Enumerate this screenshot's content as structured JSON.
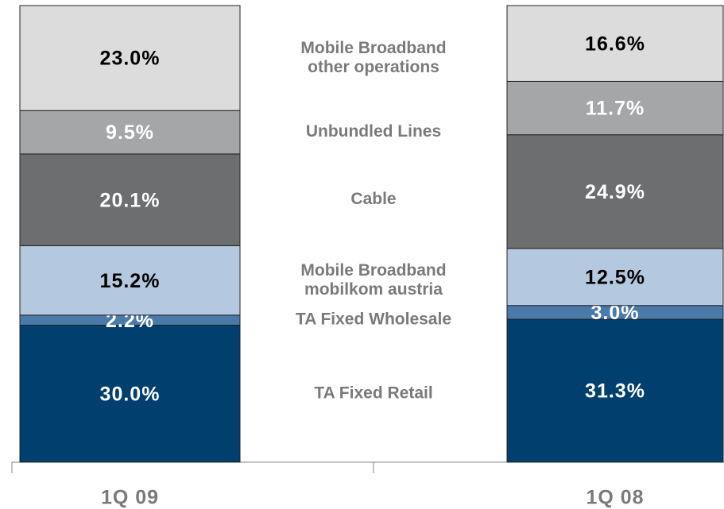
{
  "chart_data": {
    "type": "stacked_bar",
    "categories": [
      "1Q 09",
      "1Q 08"
    ],
    "ylim": [
      0,
      100
    ],
    "series": [
      {
        "name": "TA Fixed Retail",
        "color": "#003f6e",
        "values": [
          30.0,
          31.3
        ],
        "value_labels": [
          "30.0%",
          "31.3%"
        ]
      },
      {
        "name": "TA Fixed Wholesale",
        "color": "#4a7aaa",
        "values": [
          2.2,
          3.0
        ],
        "value_labels": [
          "2.2%",
          "3.0%"
        ]
      },
      {
        "name": "Mobile Broadband\nmobilkom austria",
        "color": "#b4c8e0",
        "values": [
          15.2,
          12.5
        ],
        "value_labels": [
          "15.2%",
          "12.5%"
        ]
      },
      {
        "name": "Cable",
        "color": "#6d6e70",
        "values": [
          20.1,
          24.9
        ],
        "value_labels": [
          "20.1%",
          "24.9%"
        ]
      },
      {
        "name": "Unbundled Lines",
        "color": "#a5a6a8",
        "values": [
          9.5,
          11.7
        ],
        "value_labels": [
          "9.5%",
          "11.7%"
        ]
      },
      {
        "name": "Mobile Broadband\nother operations",
        "color": "#dcdcdc",
        "values": [
          23.0,
          16.6
        ],
        "value_labels": [
          "23.0%",
          "16.6%"
        ]
      }
    ]
  }
}
